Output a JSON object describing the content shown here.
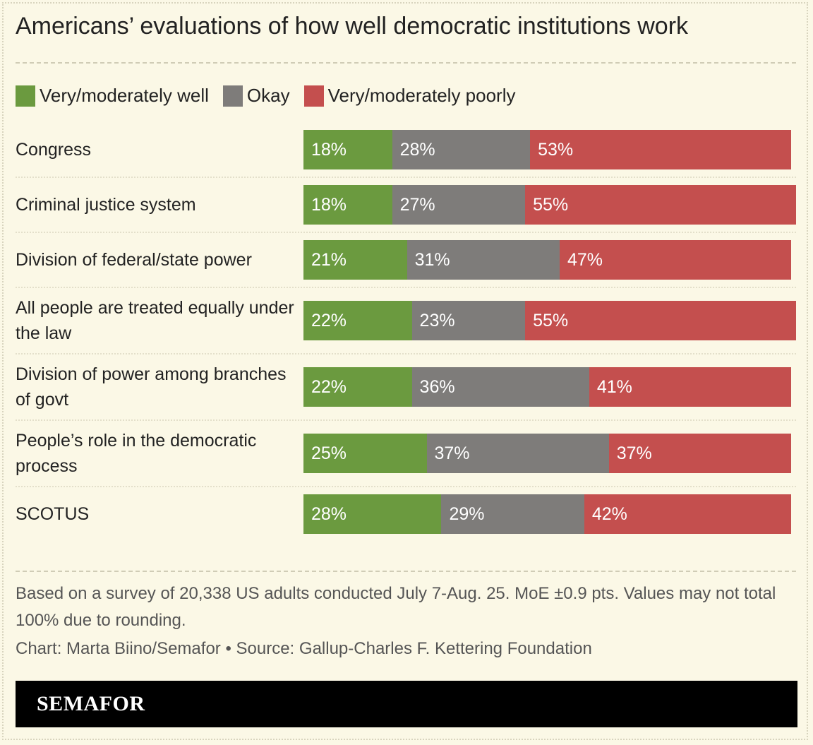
{
  "chart_data": {
    "type": "stacked-bar",
    "title": "Americans’ evaluations of how well democratic institutions work",
    "categories": [
      "Congress",
      "Criminal justice system",
      "Division of federal/state power",
      "All people are treated equally under the law",
      "Division of power among branches of govt",
      "People’s role in the democratic process",
      "SCOTUS"
    ],
    "series": [
      {
        "name": "Very/moderately well",
        "color": "#6b9a3f",
        "values": [
          18,
          18,
          21,
          22,
          22,
          25,
          28
        ],
        "value_labels": [
          "18%",
          "18%",
          "21%",
          "22%",
          "22%",
          "25%",
          "28%"
        ]
      },
      {
        "name": "Okay",
        "color": "#7e7c7a",
        "values": [
          28,
          27,
          31,
          23,
          36,
          37,
          29
        ],
        "value_labels": [
          "28%",
          "27%",
          "31%",
          "23%",
          "36%",
          "37%",
          "29%"
        ]
      },
      {
        "name": "Very/moderately poorly",
        "color": "#c44f4e",
        "values": [
          53,
          55,
          47,
          55,
          41,
          37,
          42
        ],
        "value_labels": [
          "53%",
          "55%",
          "47%",
          "55%",
          "41%",
          "37%",
          "42%"
        ]
      }
    ],
    "xlim": [
      0,
      100
    ],
    "note": "Based on a survey of 20,338 US adults conducted July 7-Aug. 25. MoE ±0.9 pts. Values may not total 100% due to rounding.",
    "source": "Chart: Marta Biino/Semafor • Source: Gallup-Charles F. Kettering Foundation",
    "logo": "SEMAFOR"
  }
}
